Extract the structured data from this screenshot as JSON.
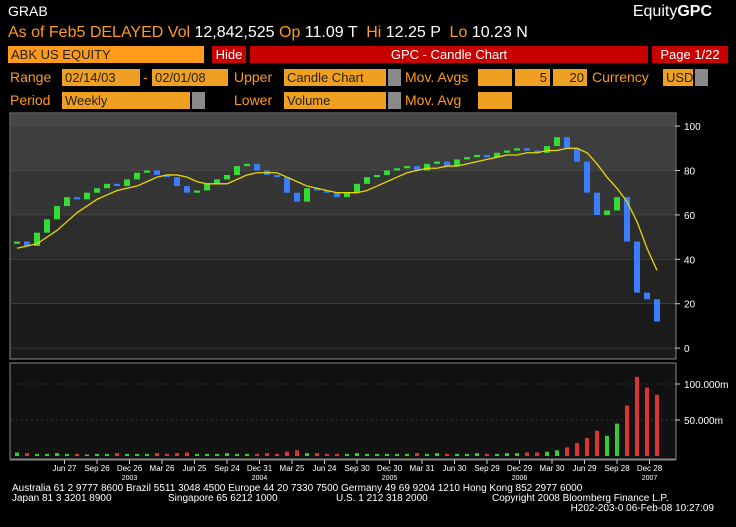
{
  "header": {
    "function": "GRAB",
    "brand_prefix": "Equity",
    "brand": "GPC"
  },
  "quote": {
    "as_of": "As of Feb5 DELAYED",
    "vol_label": "Vol",
    "vol": "12,842,525",
    "open_label": "Op",
    "open": "11.09",
    "open_flag": "T",
    "high_label": "Hi",
    "high": "12.25",
    "high_flag": "P",
    "low_label": "Lo",
    "low": "10.23",
    "low_flag": "N"
  },
  "toolbar": {
    "security": "ABK US EQUITY",
    "hide": "Hide",
    "title": "GPC - Candle Chart",
    "page": "Page 1/22"
  },
  "controls": {
    "range_label": "Range",
    "start": "02/14/03",
    "dash": "-",
    "end": "02/01/08",
    "upper_label": "Upper",
    "upper": "Candle Chart",
    "mov_avgs_label": "Mov. Avgs",
    "ma1": "5",
    "ma2": "20",
    "currency_label": "Currency",
    "currency": "USD",
    "period_label": "Period",
    "period": "Weekly",
    "lower_label": "Lower",
    "lower": "Volume",
    "mov_avg_label": "Mov. Avg"
  },
  "chart_data": [
    {
      "type": "candlestick",
      "up_color": "#33dd33",
      "down_color": "#3a7dff",
      "x": [
        0,
        4,
        8,
        12,
        16,
        20,
        24,
        28,
        32,
        36,
        40,
        44,
        48,
        52,
        56,
        60,
        64,
        68,
        72,
        76,
        80,
        84,
        88,
        92,
        96,
        100,
        104,
        108,
        112,
        116,
        120,
        124,
        128,
        132,
        136,
        140,
        144,
        148,
        152,
        156,
        160,
        164,
        168,
        172,
        176,
        180,
        184,
        188,
        192,
        196,
        200,
        204,
        208,
        212,
        216,
        220,
        224,
        228,
        232,
        236,
        240,
        244,
        248,
        252,
        256
      ],
      "open": [
        47,
        48,
        46,
        52,
        58,
        64,
        68,
        67,
        70,
        72,
        74,
        73,
        76,
        79,
        80,
        78,
        77,
        73,
        70,
        71,
        74,
        76,
        78,
        82,
        83,
        80,
        78,
        77,
        70,
        66,
        72,
        71,
        70,
        68,
        70,
        74,
        77,
        78,
        80,
        81,
        82,
        80,
        83,
        84,
        82,
        85,
        86,
        87,
        86,
        88,
        89,
        90,
        89,
        88,
        91,
        95,
        90,
        84,
        70,
        60,
        62,
        68,
        48,
        25,
        22
      ],
      "close": [
        48,
        46,
        52,
        58,
        64,
        68,
        67,
        70,
        72,
        74,
        73,
        76,
        79,
        80,
        78,
        77,
        73,
        70,
        71,
        74,
        76,
        78,
        82,
        83,
        80,
        78,
        77,
        70,
        66,
        72,
        71,
        70,
        68,
        70,
        74,
        77,
        78,
        80,
        81,
        82,
        80,
        83,
        84,
        82,
        85,
        86,
        87,
        86,
        88,
        89,
        90,
        89,
        88,
        91,
        95,
        90,
        84,
        70,
        60,
        62,
        68,
        48,
        25,
        22,
        12
      ],
      "moving_average": {
        "color": "#e8d800",
        "values": [
          45,
          46,
          47,
          50,
          53,
          57,
          61,
          64,
          67,
          69,
          71,
          72,
          73,
          75,
          77,
          78,
          78,
          77,
          75,
          74,
          74,
          74,
          76,
          78,
          79,
          79,
          79,
          77,
          75,
          73,
          72,
          71,
          70,
          70,
          70,
          71,
          73,
          75,
          77,
          79,
          80,
          81,
          81,
          82,
          82,
          83,
          84,
          85,
          86,
          87,
          87,
          88,
          88,
          89,
          89,
          90,
          90,
          88,
          83,
          77,
          72,
          66,
          57,
          45,
          35
        ]
      },
      "xlim": [
        -2,
        262
      ],
      "ylim": [
        -4,
        105
      ],
      "yticks": [
        0,
        20,
        40,
        60,
        80,
        100
      ],
      "xticks": [
        {
          "value": 19,
          "label": "Jun 27"
        },
        {
          "value": 32,
          "label": "Sep 26"
        },
        {
          "value": 45,
          "label": "Dec 26"
        },
        {
          "value": 58,
          "label": "Mar 26"
        },
        {
          "value": 71,
          "label": "Jun 25"
        },
        {
          "value": 84,
          "label": "Sep 24"
        },
        {
          "value": 97,
          "label": "Dec 31"
        },
        {
          "value": 110,
          "label": "Mar 25"
        },
        {
          "value": 123,
          "label": "Jun 24"
        },
        {
          "value": 136,
          "label": "Sep 30"
        },
        {
          "value": 149,
          "label": "Dec 30"
        },
        {
          "value": 162,
          "label": "Mar 31"
        },
        {
          "value": 175,
          "label": "Jun 30"
        },
        {
          "value": 188,
          "label": "Sep 29"
        },
        {
          "value": 201,
          "label": "Dec 29"
        },
        {
          "value": 214,
          "label": "Mar 30"
        },
        {
          "value": 227,
          "label": "Jun 29"
        },
        {
          "value": 240,
          "label": "Sep 28"
        },
        {
          "value": 253,
          "label": "Dec 28"
        }
      ],
      "year_labels": [
        {
          "value": 45,
          "label": "2003"
        },
        {
          "value": 97,
          "label": "2004"
        },
        {
          "value": 149,
          "label": "2005"
        },
        {
          "value": 201,
          "label": "2006"
        },
        {
          "value": 253,
          "label": "2007"
        }
      ]
    },
    {
      "type": "bar",
      "up_color": "#33cc33",
      "down_color": "#dd3333",
      "x": [
        0,
        4,
        8,
        12,
        16,
        20,
        24,
        28,
        32,
        36,
        40,
        44,
        48,
        52,
        56,
        60,
        64,
        68,
        72,
        76,
        80,
        84,
        88,
        92,
        96,
        100,
        104,
        108,
        112,
        116,
        120,
        124,
        128,
        132,
        136,
        140,
        144,
        148,
        152,
        156,
        160,
        164,
        168,
        172,
        176,
        180,
        184,
        188,
        192,
        196,
        200,
        204,
        208,
        212,
        216,
        220,
        224,
        228,
        232,
        236,
        240,
        244,
        248,
        252,
        256
      ],
      "values": [
        5000000,
        4000000,
        3000000,
        3000000,
        4000000,
        3000000,
        3000000,
        2000000,
        3000000,
        3000000,
        4000000,
        3000000,
        3000000,
        3000000,
        4000000,
        3000000,
        4000000,
        5000000,
        3000000,
        3000000,
        3000000,
        4000000,
        3000000,
        3000000,
        3000000,
        4000000,
        3000000,
        6000000,
        8000000,
        4000000,
        4000000,
        3000000,
        3000000,
        3000000,
        4000000,
        3000000,
        3000000,
        3000000,
        3000000,
        3000000,
        4000000,
        3000000,
        4000000,
        3000000,
        3000000,
        3000000,
        4000000,
        3000000,
        3000000,
        4000000,
        4000000,
        5000000,
        5000000,
        6000000,
        8000000,
        12000000,
        18000000,
        25000000,
        35000000,
        28000000,
        45000000,
        70000000,
        110000000,
        95000000,
        85000000
      ],
      "xlim": [
        -2,
        262
      ],
      "ylim": [
        0,
        125000000
      ],
      "yticks": [
        {
          "value": 50000000,
          "label": "50.000m"
        },
        {
          "value": 100000000,
          "label": "100.000m"
        }
      ]
    }
  ],
  "footer": {
    "line1": "Australia 61 2 9777 8600 Brazil 5511 3048 4500 Europe 44 20 7330 7500 Germany 49 69 9204 1210 Hong Kong 852 2977 6000",
    "line2a": "Japan 81 3 3201 8900",
    "line2b": "Singapore 65 6212 1000",
    "line2c": "U.S. 1 212 318 2000",
    "line2d": "Copyright 2008 Bloomberg Finance L.P.",
    "line3": "H202-203-0 06-Feb-08 10:27:09"
  }
}
